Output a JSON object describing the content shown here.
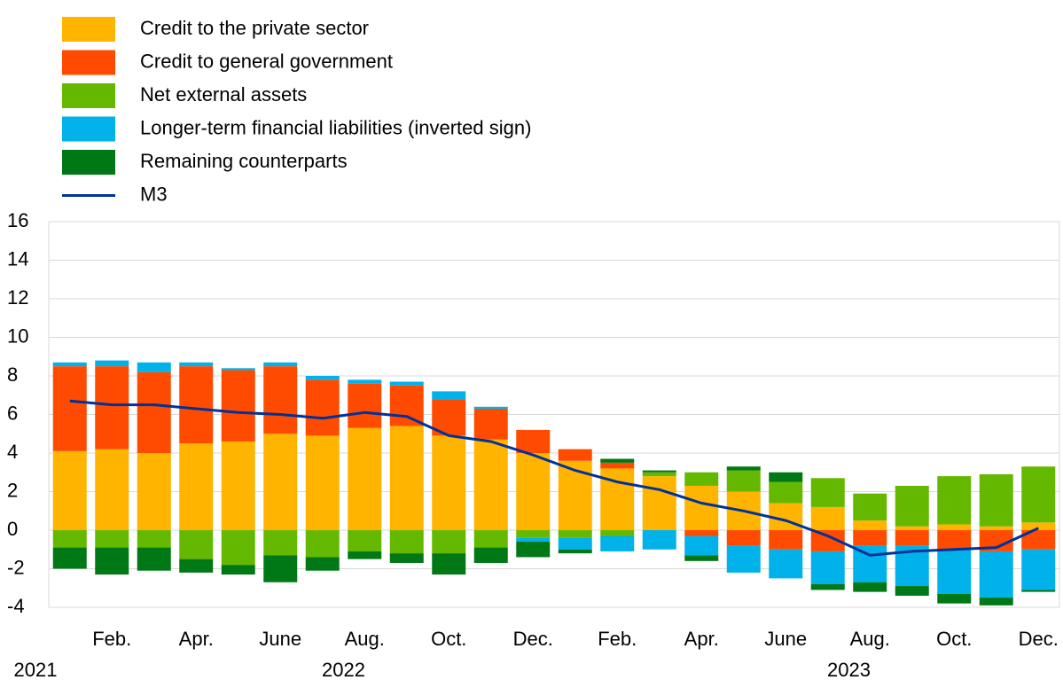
{
  "chart_data": {
    "type": "stacked-bar-line",
    "categories": [
      null,
      "Feb.",
      null,
      "Apr.",
      null,
      "June",
      null,
      "Aug.",
      null,
      "Oct.",
      null,
      "Dec.",
      null,
      "Feb.",
      null,
      "Apr.",
      null,
      "June",
      null,
      "Aug.",
      null,
      "Oct.",
      null,
      "Dec."
    ],
    "year_labels": [
      "2021",
      null,
      null,
      null,
      null,
      null,
      "2022",
      null,
      null,
      null,
      null,
      null,
      null,
      null,
      null,
      null,
      null,
      null,
      "2023",
      null,
      null,
      null,
      null,
      null
    ],
    "series": [
      {
        "name": "Credit to the private sector",
        "color": "#ffb400",
        "values": [
          4.1,
          4.2,
          4.0,
          4.5,
          4.6,
          5.0,
          4.9,
          5.3,
          5.4,
          4.9,
          4.7,
          4.0,
          3.6,
          3.2,
          2.8,
          2.3,
          2.0,
          1.4,
          1.2,
          0.5,
          0.2,
          0.3,
          0.2,
          0.4
        ]
      },
      {
        "name": "Credit to general government",
        "color": "#ff4b00",
        "values": [
          4.4,
          4.3,
          4.2,
          4.0,
          3.7,
          3.5,
          2.9,
          2.3,
          2.1,
          1.9,
          1.6,
          1.2,
          0.6,
          0.3,
          0.0,
          -0.3,
          -0.8,
          -1.0,
          -1.1,
          -0.8,
          -0.8,
          -1.0,
          -1.1,
          -1.0
        ]
      },
      {
        "name": "Net external assets",
        "color": "#65b800",
        "values": [
          -0.9,
          -0.9,
          -0.9,
          -1.5,
          -1.8,
          -1.3,
          -1.4,
          -1.1,
          -1.2,
          -1.2,
          -0.9,
          -0.4,
          -0.4,
          -0.3,
          0.2,
          0.7,
          1.1,
          1.1,
          1.5,
          1.4,
          2.1,
          2.5,
          2.7,
          2.9
        ]
      },
      {
        "name": "Longer-term financial liabilities (inverted sign)",
        "color": "#00b1ea",
        "values": [
          0.2,
          0.3,
          0.5,
          0.2,
          0.1,
          0.2,
          0.2,
          0.2,
          0.2,
          0.4,
          0.1,
          -0.2,
          -0.6,
          -0.8,
          -1.0,
          -1.0,
          -1.4,
          -1.5,
          -1.7,
          -1.9,
          -2.1,
          -2.3,
          -2.4,
          -2.1
        ]
      },
      {
        "name": "Remaining counterparts",
        "color": "#007816",
        "values": [
          -1.1,
          -1.4,
          -1.2,
          -0.7,
          -0.5,
          -1.4,
          -0.7,
          -0.4,
          -0.5,
          -1.1,
          -0.8,
          -0.8,
          -0.2,
          0.2,
          0.1,
          -0.3,
          0.2,
          0.5,
          -0.3,
          -0.5,
          -0.5,
          -0.5,
          -0.4,
          -0.1
        ]
      }
    ],
    "line": {
      "name": "M3",
      "color": "#003299",
      "values": [
        6.7,
        6.5,
        6.5,
        6.3,
        6.1,
        6.0,
        5.8,
        6.1,
        5.9,
        4.9,
        4.6,
        3.9,
        3.1,
        2.5,
        2.1,
        1.4,
        1.0,
        0.5,
        -0.3,
        -1.3,
        -1.1,
        -1.0,
        -0.9,
        0.1
      ]
    },
    "ylim": [
      -4,
      16
    ],
    "yticks": [
      -4,
      -2,
      0,
      2,
      4,
      6,
      8,
      10,
      12,
      14,
      16
    ],
    "grid": true
  }
}
